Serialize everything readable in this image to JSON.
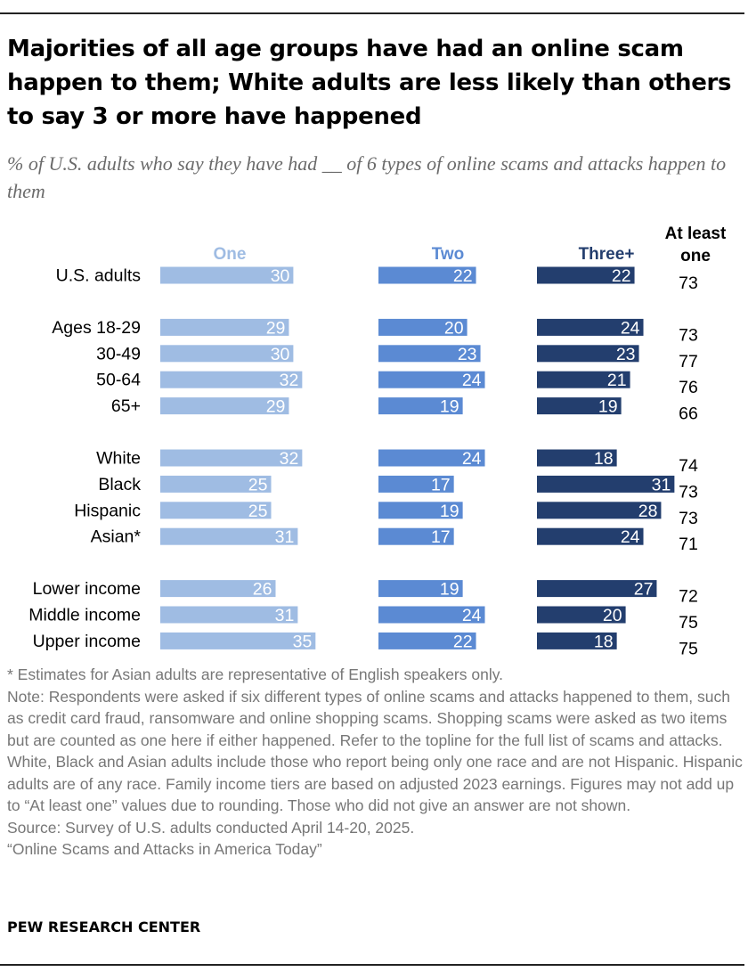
{
  "title": "Majorities of all age groups have had an online scam happen to them; White adults are less likely than others to say 3 or more have happened",
  "subtitle": "% of U.S. adults who say they have had __ of 6 types of online scams and attacks happen to them",
  "chart_data": {
    "type": "bar",
    "layout": "grouped-horizontal-panels",
    "series": [
      {
        "name": "One",
        "color": "#9fbce3"
      },
      {
        "name": "Two",
        "color": "#5b8ad3"
      },
      {
        "name": "Three+",
        "color": "#233e6e"
      }
    ],
    "total_column": {
      "label_line1": "At least",
      "label_line2": "one"
    },
    "groups": [
      {
        "rows": [
          {
            "label": "U.S. adults",
            "values": [
              30,
              22,
              22
            ],
            "total": 73
          }
        ]
      },
      {
        "rows": [
          {
            "label": "Ages 18-29",
            "values": [
              29,
              20,
              24
            ],
            "total": 73
          },
          {
            "label": "30-49",
            "values": [
              30,
              23,
              23
            ],
            "total": 77
          },
          {
            "label": "50-64",
            "values": [
              32,
              24,
              21
            ],
            "total": 76
          },
          {
            "label": "65+",
            "values": [
              29,
              19,
              19
            ],
            "total": 66
          }
        ]
      },
      {
        "rows": [
          {
            "label": "White",
            "values": [
              32,
              24,
              18
            ],
            "total": 74
          },
          {
            "label": "Black",
            "values": [
              25,
              17,
              31
            ],
            "total": 73
          },
          {
            "label": "Hispanic",
            "values": [
              25,
              19,
              28
            ],
            "total": 73
          },
          {
            "label": "Asian*",
            "values": [
              31,
              17,
              24
            ],
            "total": 71
          }
        ]
      },
      {
        "rows": [
          {
            "label": "Lower income",
            "values": [
              26,
              19,
              27
            ],
            "total": 72
          },
          {
            "label": "Middle income",
            "values": [
              31,
              24,
              20
            ],
            "total": 75
          },
          {
            "label": "Upper income",
            "values": [
              35,
              22,
              18
            ],
            "total": 75
          }
        ]
      }
    ]
  },
  "notes": {
    "asterisk": "* Estimates for Asian adults are representative of English speakers only.",
    "note": "Note: Respondents were asked if six different types of online scams and attacks happened to them, such as credit card fraud, ransomware and online shopping scams. Shopping scams were asked as two items but are counted as one here if either happened. Refer to the topline for the full list of scams and attacks. White, Black and Asian adults include those who report being only one race and are not Hispanic. Hispanic adults are of any race. Family income tiers are based on adjusted 2023 earnings. Figures may not add up to “At least one” values due to rounding. Those who did not give an answer are not shown.",
    "source": "Source: Survey of U.S. adults conducted April 14-20, 2025.",
    "report": "“Online Scams and Attacks in America Today”"
  },
  "brand": "PEW RESEARCH CENTER"
}
